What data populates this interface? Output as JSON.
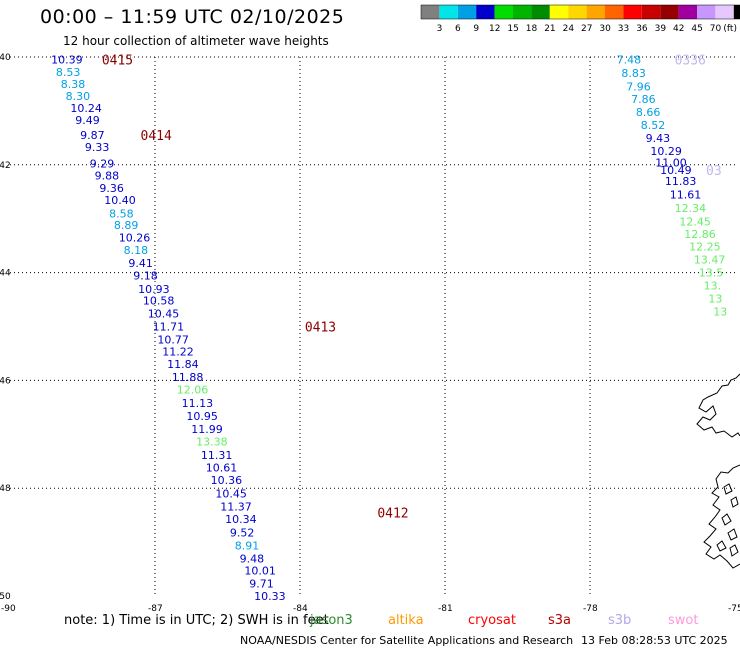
{
  "title": "00:00 – 11:59 UTC 02/10/2025",
  "subtitle": "12 hour collection of altimeter wave heights",
  "note": "note:  1) Time is in UTC; 2) SWH is in feet",
  "credit": "NOAA/NESDIS Center for Satellite Applications and Research",
  "updated": "13 Feb 08:28:53 UTC 2025",
  "satellites": [
    {
      "name": "jason3",
      "color": "#2e8b2e"
    },
    {
      "name": "altika",
      "color": "#ff9900"
    },
    {
      "name": "cryosat",
      "color": "#ff0000"
    },
    {
      "name": "s3a",
      "color": "#b00000"
    },
    {
      "name": "s3b",
      "color": "#b0a8e8"
    },
    {
      "name": "swot",
      "color": "#ff99dd"
    }
  ],
  "colorbar": {
    "unit": "(ft)",
    "labels": [
      "3",
      "6",
      "9",
      "12",
      "15",
      "18",
      "21",
      "24",
      "27",
      "30",
      "33",
      "36",
      "39",
      "42",
      "45",
      "70"
    ],
    "colors": [
      "#808080",
      "#00e5e5",
      "#00a0e6",
      "#0000cc",
      "#00dd00",
      "#00b400",
      "#008c00",
      "#ffff00",
      "#ffd700",
      "#ffa500",
      "#ff6400",
      "#ff0000",
      "#c80000",
      "#960000",
      "#a000a0",
      "#c896ff",
      "#e6c8ff",
      "#000000"
    ]
  },
  "chart_data": {
    "type": "scatter",
    "xlabel": "",
    "ylabel": "",
    "xlim": [
      -90,
      -75
    ],
    "ylim": [
      -50,
      -40
    ],
    "x_ticks": [
      -90,
      -87,
      -84,
      -81,
      -78,
      -75
    ],
    "y_ticks": [
      -40,
      -42,
      -44,
      -46,
      -48,
      -50
    ],
    "track_labels": [
      {
        "text": "0415",
        "lon": -88.1,
        "lat": -40.05,
        "color": "#8b0000"
      },
      {
        "text": "0414",
        "lon": -87.3,
        "lat": -41.45,
        "color": "#8b0000"
      },
      {
        "text": "0413",
        "lon": -83.9,
        "lat": -45.0,
        "color": "#8b0000"
      },
      {
        "text": "0412",
        "lon": -82.4,
        "lat": -48.45,
        "color": "#8b0000"
      },
      {
        "text": "0336",
        "lon": -76.25,
        "lat": -40.05,
        "color": "#c0b8f0"
      },
      {
        "text": "03",
        "lon": -75.6,
        "lat": -42.1,
        "color": "#c0b8f0"
      }
    ],
    "series": [
      {
        "points": [
          {
            "lon": -89.15,
            "lat": -40.05,
            "swh": "10.39",
            "color": "#0000cc"
          },
          {
            "lon": -89.05,
            "lat": -40.28,
            "swh": "8.53",
            "color": "#00a0e6"
          },
          {
            "lon": -88.95,
            "lat": -40.5,
            "swh": "8.38",
            "color": "#00a0e6"
          },
          {
            "lon": -88.85,
            "lat": -40.72,
            "swh": "8.30",
            "color": "#00a0e6"
          },
          {
            "lon": -88.75,
            "lat": -40.95,
            "swh": "10.24",
            "color": "#0000cc"
          },
          {
            "lon": -88.65,
            "lat": -41.17,
            "swh": "9.49",
            "color": "#0000cc"
          },
          {
            "lon": -88.55,
            "lat": -41.45,
            "swh": "9.87",
            "color": "#0000cc"
          },
          {
            "lon": -88.45,
            "lat": -41.67,
            "swh": "9.33",
            "color": "#0000cc"
          },
          {
            "lon": -88.35,
            "lat": -41.98,
            "swh": "9.29",
            "color": "#0000cc"
          },
          {
            "lon": -88.25,
            "lat": -42.2,
            "swh": "9.88",
            "color": "#0000cc"
          },
          {
            "lon": -88.15,
            "lat": -42.43,
            "swh": "9.36",
            "color": "#0000cc"
          },
          {
            "lon": -88.05,
            "lat": -42.65,
            "swh": "10.40",
            "color": "#0000cc"
          },
          {
            "lon": -87.95,
            "lat": -42.9,
            "swh": "8.58",
            "color": "#00a0e6"
          },
          {
            "lon": -87.85,
            "lat": -43.12,
            "swh": "8.89",
            "color": "#00a0e6"
          },
          {
            "lon": -87.75,
            "lat": -43.35,
            "swh": "10.26",
            "color": "#0000cc"
          },
          {
            "lon": -87.65,
            "lat": -43.58,
            "swh": "8.18",
            "color": "#00a0e6"
          },
          {
            "lon": -87.55,
            "lat": -43.82,
            "swh": "9.41",
            "color": "#0000cc"
          },
          {
            "lon": -87.45,
            "lat": -44.05,
            "swh": "9.18",
            "color": "#0000cc"
          },
          {
            "lon": -87.35,
            "lat": -44.3,
            "swh": "10.93",
            "color": "#0000cc"
          },
          {
            "lon": -87.25,
            "lat": -44.52,
            "swh": "10.58",
            "color": "#0000cc"
          },
          {
            "lon": -87.15,
            "lat": -44.76,
            "swh": "10.45",
            "color": "#0000cc"
          },
          {
            "lon": -87.05,
            "lat": -45.0,
            "swh": "11.71",
            "color": "#0000cc"
          },
          {
            "lon": -86.95,
            "lat": -45.24,
            "swh": "10.77",
            "color": "#0000cc"
          },
          {
            "lon": -86.85,
            "lat": -45.46,
            "swh": "11.22",
            "color": "#0000cc"
          },
          {
            "lon": -86.75,
            "lat": -45.7,
            "swh": "11.84",
            "color": "#0000cc"
          },
          {
            "lon": -86.65,
            "lat": -45.94,
            "swh": "11.88",
            "color": "#0000cc"
          },
          {
            "lon": -86.55,
            "lat": -46.17,
            "swh": "12.06",
            "color": "#66ee66"
          },
          {
            "lon": -86.45,
            "lat": -46.42,
            "swh": "11.13",
            "color": "#0000cc"
          },
          {
            "lon": -86.35,
            "lat": -46.66,
            "swh": "10.95",
            "color": "#0000cc"
          },
          {
            "lon": -86.25,
            "lat": -46.9,
            "swh": "11.99",
            "color": "#0000cc"
          },
          {
            "lon": -86.15,
            "lat": -47.13,
            "swh": "13.38",
            "color": "#66ee66"
          },
          {
            "lon": -86.05,
            "lat": -47.38,
            "swh": "11.31",
            "color": "#0000cc"
          },
          {
            "lon": -85.95,
            "lat": -47.62,
            "swh": "10.61",
            "color": "#0000cc"
          },
          {
            "lon": -85.85,
            "lat": -47.85,
            "swh": "10.36",
            "color": "#0000cc"
          },
          {
            "lon": -85.75,
            "lat": -48.1,
            "swh": "10.45",
            "color": "#0000cc"
          },
          {
            "lon": -85.65,
            "lat": -48.34,
            "swh": "11.37",
            "color": "#0000cc"
          },
          {
            "lon": -85.55,
            "lat": -48.57,
            "swh": "10.34",
            "color": "#0000cc"
          },
          {
            "lon": -85.45,
            "lat": -48.82,
            "swh": "9.52",
            "color": "#0000cc"
          },
          {
            "lon": -85.35,
            "lat": -49.06,
            "swh": "8.91",
            "color": "#00a0e6"
          },
          {
            "lon": -85.25,
            "lat": -49.3,
            "swh": "9.48",
            "color": "#0000cc"
          },
          {
            "lon": -85.15,
            "lat": -49.53,
            "swh": "10.01",
            "color": "#0000cc"
          },
          {
            "lon": -85.05,
            "lat": -49.77,
            "swh": "9.71",
            "color": "#0000cc"
          },
          {
            "lon": -84.95,
            "lat": -50.0,
            "swh": "10.33",
            "color": "#0000cc"
          }
        ]
      },
      {
        "points": [
          {
            "lon": -77.45,
            "lat": -40.05,
            "swh": "7.48",
            "color": "#00a0e6"
          },
          {
            "lon": -77.35,
            "lat": -40.3,
            "swh": "8.83",
            "color": "#00a0e6"
          },
          {
            "lon": -77.25,
            "lat": -40.55,
            "swh": "7.96",
            "color": "#00a0e6"
          },
          {
            "lon": -77.15,
            "lat": -40.78,
            "swh": "7.86",
            "color": "#00a0e6"
          },
          {
            "lon": -77.05,
            "lat": -41.02,
            "swh": "8.66",
            "color": "#00a0e6"
          },
          {
            "lon": -76.95,
            "lat": -41.26,
            "swh": "8.52",
            "color": "#00a0e6"
          },
          {
            "lon": -76.85,
            "lat": -41.5,
            "swh": "9.43",
            "color": "#0000cc"
          },
          {
            "lon": -76.75,
            "lat": -41.74,
            "swh": "10.29",
            "color": "#0000cc"
          },
          {
            "lon": -76.65,
            "lat": -41.96,
            "swh": "11.00",
            "color": "#0000cc"
          },
          {
            "lon": -76.55,
            "lat": -42.1,
            "swh": "10.49",
            "color": "#0000cc"
          },
          {
            "lon": -76.45,
            "lat": -42.3,
            "swh": "11.83",
            "color": "#0000cc"
          },
          {
            "lon": -76.35,
            "lat": -42.55,
            "swh": "11.61",
            "color": "#0000cc"
          },
          {
            "lon": -76.25,
            "lat": -42.8,
            "swh": "12.34",
            "color": "#66ee66"
          },
          {
            "lon": -76.15,
            "lat": -43.05,
            "swh": "12.45",
            "color": "#66ee66"
          },
          {
            "lon": -76.05,
            "lat": -43.28,
            "swh": "12.86",
            "color": "#66ee66"
          },
          {
            "lon": -75.95,
            "lat": -43.52,
            "swh": "12.25",
            "color": "#66ee66"
          },
          {
            "lon": -75.85,
            "lat": -43.76,
            "swh": "13.47",
            "color": "#66ee66"
          },
          {
            "lon": -75.75,
            "lat": -44.0,
            "swh": "13.5",
            "color": "#66ee66"
          },
          {
            "lon": -75.65,
            "lat": -44.24,
            "swh": "13.",
            "color": "#66ee66"
          },
          {
            "lon": -75.55,
            "lat": -44.48,
            "swh": "13",
            "color": "#66ee66"
          },
          {
            "lon": -75.45,
            "lat": -44.72,
            "swh": "13",
            "color": "#66ee66"
          }
        ]
      }
    ]
  }
}
